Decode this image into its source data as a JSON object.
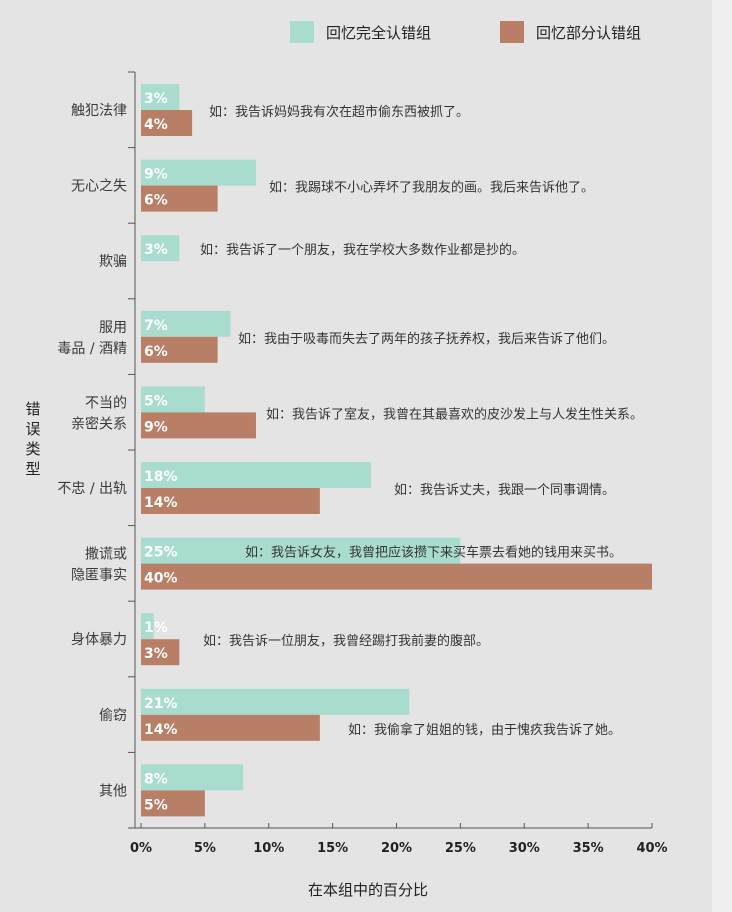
{
  "chart_data": {
    "type": "bar",
    "orientation": "horizontal",
    "ylabel": "错误类型",
    "xlabel": "在本组中的百分比",
    "xlim": [
      0,
      40
    ],
    "x_ticks": [
      "0%",
      "5%",
      "10%",
      "15%",
      "20%",
      "25%",
      "30%",
      "35%",
      "40%"
    ],
    "legend_position": "top-right",
    "grid": false,
    "categories": [
      [
        "触犯法律"
      ],
      [
        "无心之失"
      ],
      [
        "欺骗"
      ],
      [
        "服用",
        "毒品 / 酒精"
      ],
      [
        "不当的",
        "亲密关系"
      ],
      [
        "不忠 / 出轨"
      ],
      [
        "撒谎或",
        "隐匿事实"
      ],
      [
        "身体暴力"
      ],
      [
        "偷窃"
      ],
      [
        "其他"
      ]
    ],
    "series": [
      {
        "name": "回忆完全认错组",
        "color": "#a8dccf",
        "values": [
          3,
          9,
          3,
          7,
          5,
          18,
          25,
          1,
          21,
          8
        ],
        "labels": [
          "3%",
          "9%",
          "3%",
          "7%",
          "5%",
          "18%",
          "25%",
          "1%",
          "21%",
          "8%"
        ]
      },
      {
        "name": "回忆部分认错组",
        "color": "#b87e66",
        "values": [
          4,
          6,
          null,
          6,
          9,
          14,
          40,
          3,
          14,
          5
        ],
        "labels": [
          "4%",
          "6%",
          null,
          "6%",
          "9%",
          "14%",
          "40%",
          "3%",
          "14%",
          "5%"
        ]
      }
    ],
    "annotations": [
      "如：我告诉妈妈我有次在超市偷东西被抓了。",
      "如：我踢球不小心弄坏了我朋友的画。我后来告诉他了。",
      "如：我告诉了一个朋友，我在学校大多数作业都是抄的。",
      "如：我由于吸毒而失去了两年的孩子抚养权，我后来告诉了他们。",
      "如：我告诉了室友，我曾在其最喜欢的皮沙发上与人发生性关系。",
      "如：我告诉丈夫，我跟一个同事调情。",
      "如：我告诉女友，我曾把应该攒下来买车票去看她的钱用来买书。",
      "如：我告诉一位朋友，我曾经踢打我前妻的腹部。",
      "如：我偷拿了姐姐的钱，由于愧疚我告诉了她。",
      ""
    ]
  }
}
